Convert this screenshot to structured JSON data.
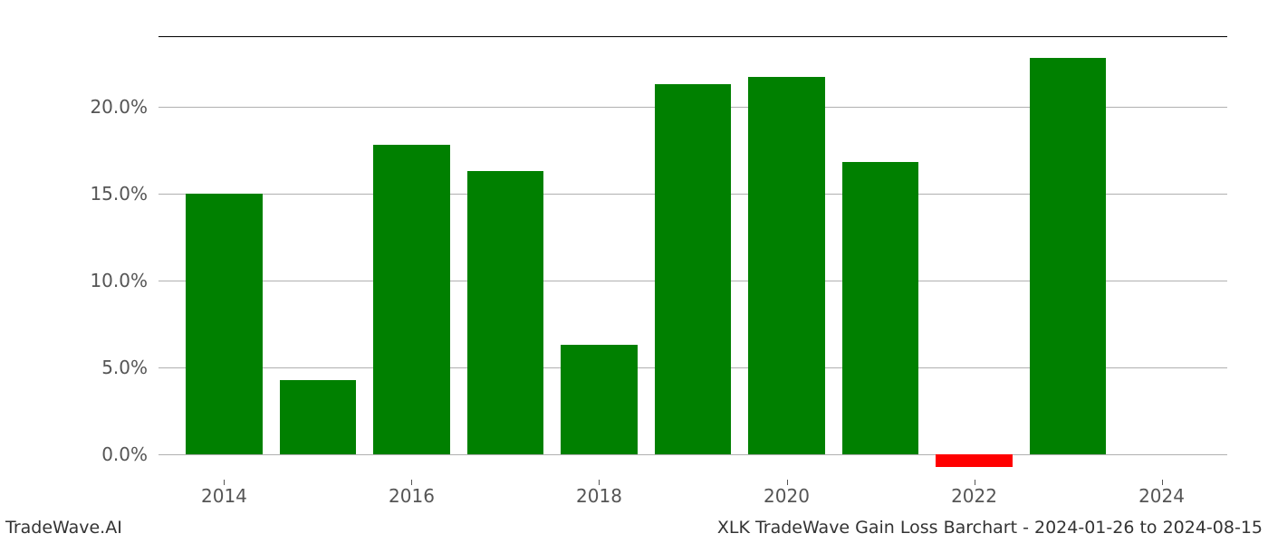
{
  "chart": {
    "type": "bar",
    "years": [
      2014,
      2015,
      2016,
      2017,
      2018,
      2019,
      2020,
      2021,
      2022,
      2023
    ],
    "values": [
      15.0,
      4.3,
      17.8,
      16.3,
      6.3,
      21.3,
      21.7,
      16.8,
      -0.7,
      22.8
    ],
    "bar_colors": [
      "#008000",
      "#008000",
      "#008000",
      "#008000",
      "#008000",
      "#008000",
      "#008000",
      "#008000",
      "#ff0000",
      "#008000"
    ],
    "bar_width": 0.82,
    "yticks": [
      0.0,
      5.0,
      10.0,
      15.0,
      20.0
    ],
    "ytick_labels": [
      "0.0%",
      "5.0%",
      "10.0%",
      "15.0%",
      "20.0%"
    ],
    "xticks": [
      2014,
      2016,
      2018,
      2020,
      2022,
      2024
    ],
    "xtick_labels": [
      "2014",
      "2016",
      "2018",
      "2020",
      "2022",
      "2024"
    ],
    "ymin": -1.5,
    "ymax": 24.0,
    "xmin": 2013.3,
    "xmax": 2024.7,
    "grid_color": "#b0b0b0",
    "background_color": "#ffffff",
    "tick_fontsize": 20,
    "tick_color": "#555555",
    "positive_color": "#008000",
    "negative_color": "#ff0000"
  },
  "footer": {
    "left": "TradeWave.AI",
    "right": "XLK TradeWave Gain Loss Barchart - 2024-01-26 to 2024-08-15",
    "fontsize": 19,
    "color": "#333333"
  }
}
